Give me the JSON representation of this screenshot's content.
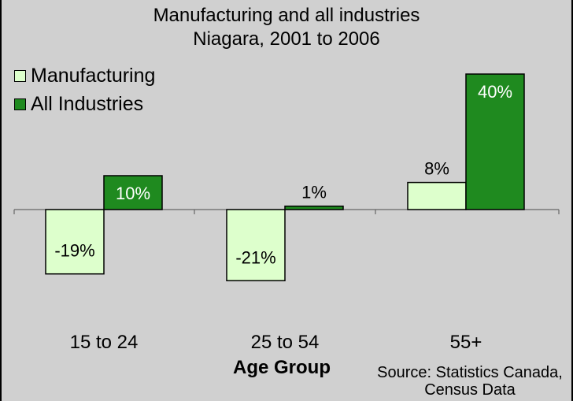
{
  "chart_data": {
    "type": "bar",
    "title": "Manufacturing and all industries",
    "subtitle": "Niagara, 2001 to 2006",
    "categories": [
      "15 to 24",
      "25 to 54",
      "55+"
    ],
    "series": [
      {
        "name": "Manufacturing",
        "values": [
          -19,
          -21,
          8
        ],
        "labels": [
          "-19%",
          "-21%",
          "8%"
        ],
        "color": "#ddffcc"
      },
      {
        "name": "All Industries",
        "values": [
          10,
          1,
          40
        ],
        "labels": [
          "10%",
          "1%",
          "40%"
        ],
        "color": "#1f8a1f"
      }
    ],
    "xlabel": "Age Group",
    "ylabel": "",
    "ylim": [
      -30,
      50
    ],
    "grid": false,
    "legend": "top-left",
    "source": [
      "Source: Statistics Canada,",
      "Census Data"
    ]
  }
}
